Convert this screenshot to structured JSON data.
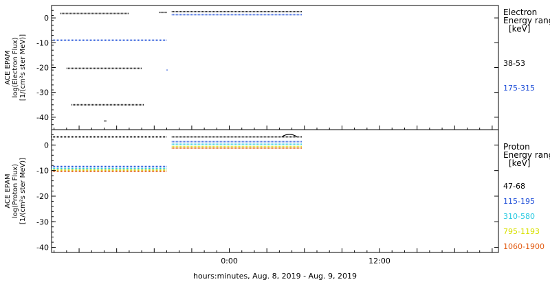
{
  "figure": {
    "xlabel": "hours:minutes, Aug.  8, 2019 - Aug.  9, 2019",
    "x_tick_labels": [
      "0:00",
      "12:00"
    ]
  },
  "chart_data": [
    {
      "type": "scatter",
      "panel": "electron",
      "ylabel_lines": [
        "ACE EPAM",
        "log(Electron Flux)",
        "[1/(cm²s ster MeV)]"
      ],
      "legend_title_lines": [
        "Electron",
        "Energy range",
        "[keV]"
      ],
      "ylim": [
        -45,
        5
      ],
      "y_ticks": [
        0,
        -10,
        -20,
        -30,
        -40
      ],
      "y_tick_labels": [
        "0",
        "-10",
        "-20",
        "-30",
        "-40"
      ],
      "x_range_hours": [
        -14.2,
        21.5
      ],
      "series": [
        {
          "name": "38-53",
          "color": "#000000",
          "points": [
            {
              "x": [
                -13.5,
                -8.0
              ],
              "y": 1.8
            },
            {
              "x": [
                -5.6,
                -5.0
              ],
              "y": 2.2
            },
            {
              "x": [
                -4.6,
                5.8
              ],
              "y": 2.5
            },
            {
              "x": [
                -13.0,
                -7.0
              ],
              "y": -20.3
            },
            {
              "x": [
                -12.6,
                -6.8
              ],
              "y": -35.0
            },
            {
              "x": [
                -10.0,
                -9.8
              ],
              "y": -41.5
            }
          ]
        },
        {
          "name": "175-315",
          "color": "#1f4fd8",
          "points": [
            {
              "x": [
                -14.2,
                -5.0
              ],
              "y": -9.0
            },
            {
              "x": [
                -4.6,
                5.8
              ],
              "y": 1.3
            },
            {
              "x": [
                -5.0,
                -4.9
              ],
              "y": -21.0
            }
          ]
        }
      ]
    },
    {
      "type": "scatter",
      "panel": "proton",
      "ylabel_lines": [
        "ACE EPAM",
        "log(Proton Flux)",
        "[1/(cm²s ster MeV)]"
      ],
      "legend_title_lines": [
        "Proton",
        "Energy range",
        "[keV]"
      ],
      "ylim": [
        -42,
        6
      ],
      "y_ticks": [
        0,
        -10,
        -20,
        -30,
        -40
      ],
      "y_tick_labels": [
        "0",
        "-10",
        "-20",
        "-30",
        "-40"
      ],
      "x_range_hours": [
        -14.2,
        21.5
      ],
      "series": [
        {
          "name": "47-68",
          "color": "#000000",
          "points": [
            {
              "x": [
                -14.2,
                -5.0
              ],
              "y": 3.2
            },
            {
              "x": [
                -4.6,
                5.8
              ],
              "y": 3.2
            }
          ]
        },
        {
          "name": "115-195",
          "color": "#1f4fd8",
          "points": [
            {
              "x": [
                -14.2,
                -5.0
              ],
              "y": -8.4
            },
            {
              "x": [
                -4.6,
                5.8
              ],
              "y": 1.3
            }
          ]
        },
        {
          "name": "310-580",
          "color": "#22c8e0",
          "points": [
            {
              "x": [
                -14.2,
                -5.0
              ],
              "y": -9.2
            },
            {
              "x": [
                -4.6,
                5.8
              ],
              "y": 0.3
            }
          ]
        },
        {
          "name": "795-1193",
          "color": "#d8e000",
          "points": [
            {
              "x": [
                -14.2,
                -5.0
              ],
              "y": -9.8
            },
            {
              "x": [
                -4.6,
                5.8
              ],
              "y": -0.6
            }
          ]
        },
        {
          "name": "1060-1900",
          "color": "#e25a10",
          "points": [
            {
              "x": [
                -14.2,
                -5.0
              ],
              "y": -10.3
            },
            {
              "x": [
                -4.6,
                5.8
              ],
              "y": -1.2
            }
          ]
        }
      ]
    }
  ]
}
